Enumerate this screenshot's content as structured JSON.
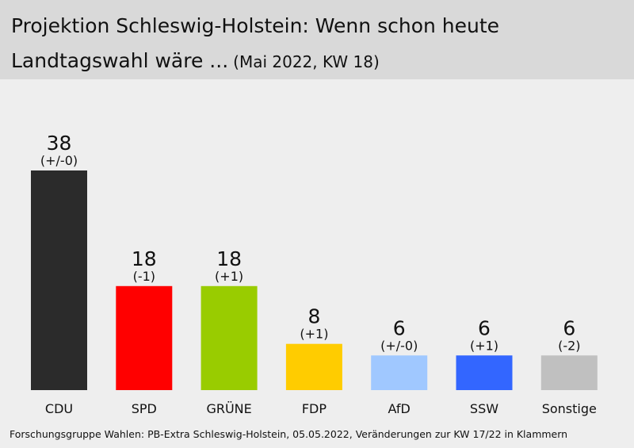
{
  "header": {
    "title_line1": "Projektion Schleswig-Holstein: Wenn schon heute",
    "title_line2": "Landtagswahl wäre ...",
    "subtitle": "(Mai 2022, KW 18)"
  },
  "footer": {
    "source": "Forschungsgruppe Wahlen: PB-Extra Schleswig-Holstein, 05.05.2022, Veränderungen zur KW 17/22 in Klammern"
  },
  "chart_data": {
    "type": "bar",
    "title": "Projektion Schleswig-Holstein: Wenn schon heute Landtagswahl wäre ...",
    "subtitle": "(Mai 2022, KW 18)",
    "categories": [
      "CDU",
      "SPD",
      "GRÜNE",
      "FDP",
      "AfD",
      "SSW",
      "Sonstige"
    ],
    "values": [
      38,
      18,
      18,
      8,
      6,
      6,
      6
    ],
    "changes": [
      "(+/-0)",
      "(-1)",
      "(+1)",
      "(+1)",
      "(+/-0)",
      "(+1)",
      "(-2)"
    ],
    "colors": [
      "#2b2b2b",
      "#ff0000",
      "#99cc00",
      "#ffcc00",
      "#a0c8ff",
      "#3366ff",
      "#c0c0c0"
    ],
    "ylim": [
      0,
      38
    ],
    "grid": false,
    "legend": "none"
  }
}
